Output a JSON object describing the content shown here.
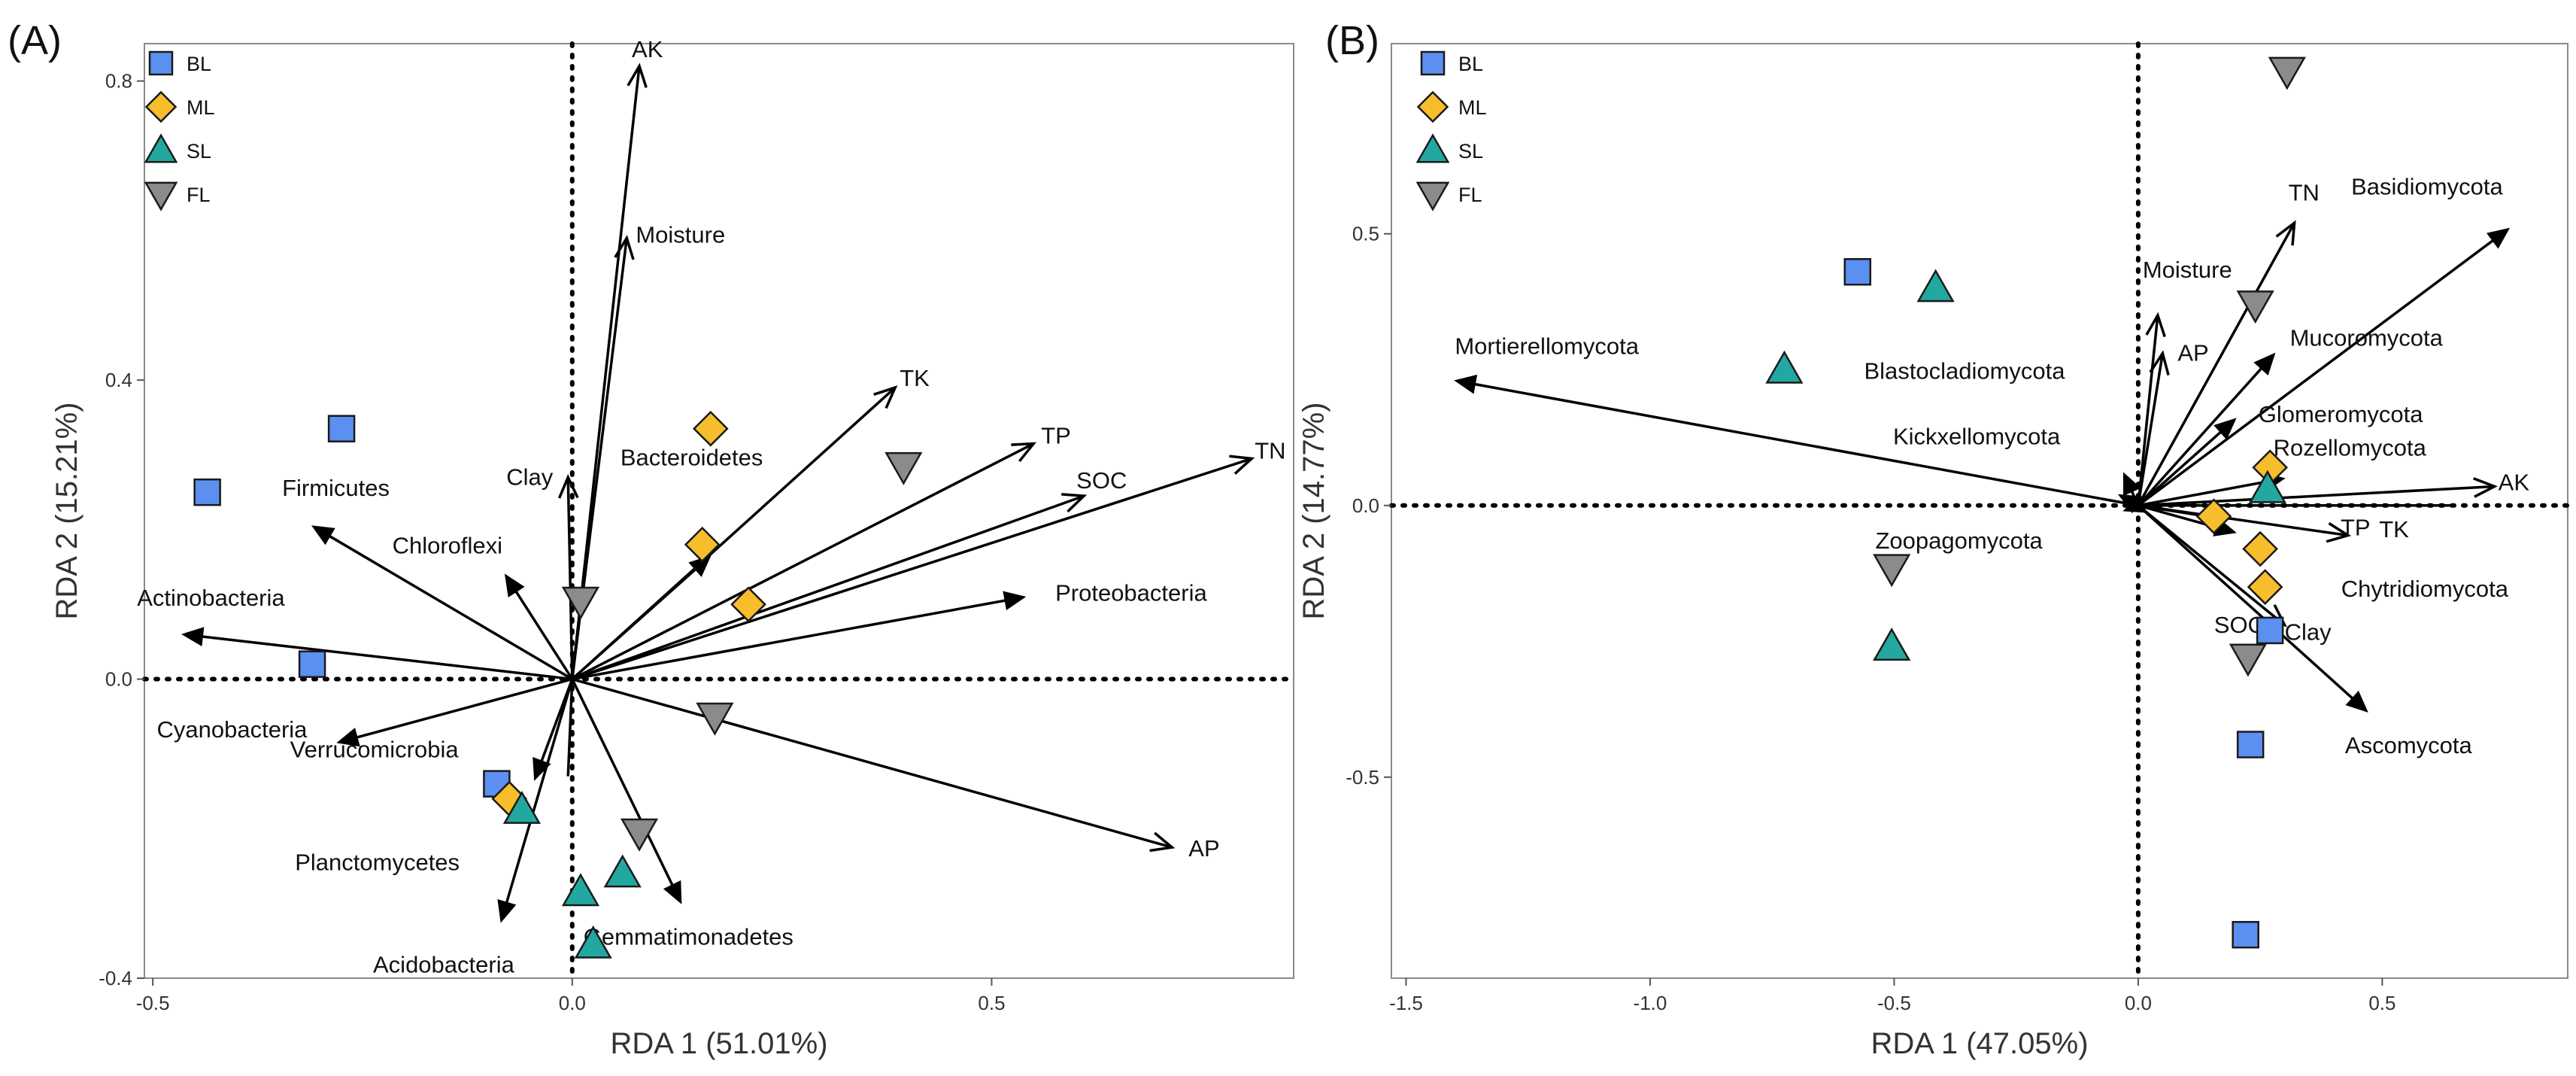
{
  "colors": {
    "BL": "#5b8ff0",
    "ML": "#f6bd2d",
    "SL": "#22a8a0",
    "FL": "#8b8b8b"
  },
  "legend": [
    {
      "key": "BL",
      "label": "BL",
      "shape": "square"
    },
    {
      "key": "ML",
      "label": "ML",
      "shape": "diamond"
    },
    {
      "key": "SL",
      "label": "SL",
      "shape": "triangle-up"
    },
    {
      "key": "FL",
      "label": "FL",
      "shape": "triangle-down"
    }
  ],
  "chart_data": [
    {
      "type": "scatter",
      "panel_label": "(A)",
      "xlabel": "RDA 1 (51.01%)",
      "ylabel": "RDA 2 (15.21%)",
      "xlim": [
        -0.51,
        0.86
      ],
      "ylim": [
        -0.4,
        0.85
      ],
      "xticks": [
        -0.5,
        0.0,
        0.5
      ],
      "yticks": [
        -0.4,
        0.0,
        0.4,
        0.8
      ],
      "xtick_labels": [
        "-0.5",
        "0.0",
        "0.5"
      ],
      "ytick_labels": [
        "-0.4",
        "0.0",
        "0.4",
        "0.8"
      ],
      "legend_position": "top-left",
      "points": [
        {
          "group": "BL",
          "x": -0.275,
          "y": 0.335
        },
        {
          "group": "BL",
          "x": -0.435,
          "y": 0.25
        },
        {
          "group": "BL",
          "x": -0.31,
          "y": 0.02
        },
        {
          "group": "BL",
          "x": -0.09,
          "y": -0.14
        },
        {
          "group": "ML",
          "x": 0.165,
          "y": 0.335
        },
        {
          "group": "ML",
          "x": 0.155,
          "y": 0.18
        },
        {
          "group": "ML",
          "x": 0.21,
          "y": 0.1
        },
        {
          "group": "ML",
          "x": -0.075,
          "y": -0.16
        },
        {
          "group": "SL",
          "x": -0.06,
          "y": -0.175
        },
        {
          "group": "SL",
          "x": 0.01,
          "y": -0.285
        },
        {
          "group": "SL",
          "x": 0.06,
          "y": -0.26
        },
        {
          "group": "SL",
          "x": 0.025,
          "y": -0.355
        },
        {
          "group": "FL",
          "x": 0.395,
          "y": 0.285
        },
        {
          "group": "FL",
          "x": 0.01,
          "y": 0.105
        },
        {
          "group": "FL",
          "x": 0.17,
          "y": -0.05
        },
        {
          "group": "FL",
          "x": 0.08,
          "y": -0.205
        }
      ],
      "arrows": [
        {
          "label": "AK",
          "x": 0.08,
          "y": 0.82,
          "head": "open",
          "label_dx": -10,
          "label_dy": -12,
          "anchor": "start"
        },
        {
          "label": "Moisture",
          "x": 0.065,
          "y": 0.59,
          "head": "open",
          "label_dx": 12,
          "label_dy": 6,
          "anchor": "start"
        },
        {
          "label": "TK",
          "x": 0.385,
          "y": 0.39,
          "head": "open",
          "label_dx": 6,
          "label_dy": -2,
          "anchor": "start"
        },
        {
          "label": "TP",
          "x": 0.55,
          "y": 0.315,
          "head": "open",
          "label_dx": 10,
          "label_dy": 0,
          "anchor": "start"
        },
        {
          "label": "SOC",
          "x": 0.61,
          "y": 0.245,
          "head": "open",
          "label_dx": -10,
          "label_dy": -10,
          "anchor": "start"
        },
        {
          "label": "TN",
          "x": 0.81,
          "y": 0.295,
          "head": "open",
          "label_dx": 4,
          "label_dy": 0,
          "anchor": "start"
        },
        {
          "label": "AP",
          "x": 0.715,
          "y": -0.225,
          "head": "open",
          "label_dx": 22,
          "label_dy": 12,
          "anchor": "start"
        },
        {
          "label": "Clay",
          "x": -0.005,
          "y": 0.27,
          "head": "open",
          "label_dx": -20,
          "label_dy": 10,
          "anchor": "end"
        },
        {
          "label": "Bacteroidetes",
          "x": 0.165,
          "y": 0.165,
          "head": "filled",
          "label_dx": -120,
          "label_dy": -120,
          "anchor": "start"
        },
        {
          "label": "Firmicutes",
          "x": -0.31,
          "y": 0.205,
          "head": "filled",
          "label_dx": -40,
          "label_dy": -40,
          "anchor": "start"
        },
        {
          "label": "Chloroflexi",
          "x": -0.08,
          "y": 0.14,
          "head": "filled",
          "label_dx": -150,
          "label_dy": -28,
          "anchor": "start"
        },
        {
          "label": "Actinobacteria",
          "x": -0.465,
          "y": 0.06,
          "head": "filled",
          "label_dx": -60,
          "label_dy": -38,
          "anchor": "start"
        },
        {
          "label": "Proteobacteria",
          "x": 0.54,
          "y": 0.11,
          "head": "filled",
          "label_dx": 40,
          "label_dy": 5,
          "anchor": "start"
        },
        {
          "label": "Cyanobacteria",
          "x": -0.28,
          "y": -0.085,
          "head": "filled",
          "label_dx": -240,
          "label_dy": -7,
          "anchor": "start"
        },
        {
          "label": "Verrucomicrobia",
          "x": -0.045,
          "y": -0.135,
          "head": "filled",
          "label_dx": -325,
          "label_dy": -30,
          "anchor": "start"
        },
        {
          "label": "Planctomycetes",
          "x": -0.005,
          "y": -0.13,
          "head": "none",
          "label_dx": -363,
          "label_dy": 125,
          "anchor": "start"
        },
        {
          "label": "Acidobacteria",
          "x": -0.085,
          "y": -0.325,
          "head": "filled",
          "label_dx": -170,
          "label_dy": 67,
          "anchor": "start"
        },
        {
          "label": "Gemmatimonadetes",
          "x": 0.13,
          "y": -0.3,
          "head": "filled",
          "label_dx": -130,
          "label_dy": 55,
          "anchor": "start"
        }
      ]
    },
    {
      "type": "scatter",
      "panel_label": "(B)",
      "xlabel": "RDA 1 (47.05%)",
      "ylabel": "RDA 2 (14.77%)",
      "xlim": [
        -1.53,
        0.88
      ],
      "ylim": [
        -0.87,
        0.85
      ],
      "xticks": [
        -1.5,
        -1.0,
        -0.5,
        0.0,
        0.5
      ],
      "yticks": [
        -0.5,
        0.0,
        0.5
      ],
      "xtick_labels": [
        "-1.5",
        "-1.0",
        "-0.5",
        "0.0",
        "0.5"
      ],
      "ytick_labels": [
        "-0.5",
        "0.0",
        "0.5"
      ],
      "legend_position": "top-left",
      "points": [
        {
          "group": "BL",
          "x": -0.575,
          "y": 0.43
        },
        {
          "group": "BL",
          "x": 0.27,
          "y": -0.23
        },
        {
          "group": "BL",
          "x": 0.23,
          "y": -0.44
        },
        {
          "group": "BL",
          "x": 0.22,
          "y": -0.79
        },
        {
          "group": "ML",
          "x": 0.27,
          "y": 0.07
        },
        {
          "group": "ML",
          "x": 0.155,
          "y": -0.02
        },
        {
          "group": "ML",
          "x": 0.25,
          "y": -0.08
        },
        {
          "group": "ML",
          "x": 0.26,
          "y": -0.15
        },
        {
          "group": "SL",
          "x": -0.415,
          "y": 0.4
        },
        {
          "group": "SL",
          "x": -0.725,
          "y": 0.25
        },
        {
          "group": "SL",
          "x": 0.265,
          "y": 0.03
        },
        {
          "group": "SL",
          "x": -0.505,
          "y": -0.26
        },
        {
          "group": "FL",
          "x": 0.305,
          "y": 0.8
        },
        {
          "group": "FL",
          "x": 0.24,
          "y": 0.37
        },
        {
          "group": "FL",
          "x": -0.505,
          "y": -0.115
        },
        {
          "group": "FL",
          "x": 0.225,
          "y": -0.28
        }
      ],
      "arrows": [
        {
          "label": "TN",
          "x": 0.32,
          "y": 0.52,
          "head": "open",
          "label_dx": -8,
          "label_dy": -30,
          "anchor": "start"
        },
        {
          "label": "Moisture",
          "x": 0.04,
          "y": 0.35,
          "head": "open",
          "label_dx": -20,
          "label_dy": -50,
          "anchor": "start"
        },
        {
          "label": "AP",
          "x": 0.05,
          "y": 0.28,
          "head": "open",
          "label_dx": 20,
          "label_dy": 10,
          "anchor": "start"
        },
        {
          "label": "AK",
          "x": 0.73,
          "y": 0.035,
          "head": "open",
          "label_dx": 5,
          "label_dy": 5,
          "anchor": "start"
        },
        {
          "label": "TP",
          "x": 0.43,
          "y": -0.055,
          "head": "open",
          "label_dx": -10,
          "label_dy": 0,
          "anchor": "start"
        },
        {
          "label": "TK",
          "x": 0.64,
          "y": 0.0,
          "head": "none",
          "label_dx": -95,
          "label_dy": 42,
          "anchor": "start"
        },
        {
          "label": "SOC",
          "x": 0.14,
          "y": -0.02,
          "head": "none",
          "label_dx": 10,
          "label_dy": 155,
          "anchor": "start"
        },
        {
          "label": "Clay",
          "x": 0.3,
          "y": -0.22,
          "head": "open",
          "label_dx": 0,
          "label_dy": 20,
          "anchor": "start"
        },
        {
          "label": "Basidiomycota",
          "x": 0.76,
          "y": 0.51,
          "head": "filled",
          "label_dx": -210,
          "label_dy": -45,
          "anchor": "start"
        },
        {
          "label": "Mucoromycota",
          "x": 0.28,
          "y": 0.28,
          "head": "filled",
          "label_dx": 20,
          "label_dy": -10,
          "anchor": "start"
        },
        {
          "label": "Glomeromycota",
          "x": 0.2,
          "y": 0.16,
          "head": "filled",
          "label_dx": 30,
          "label_dy": 5,
          "anchor": "start"
        },
        {
          "label": "Rozellomycota",
          "x": 0.3,
          "y": 0.05,
          "head": "filled",
          "label_dx": -15,
          "label_dy": -30,
          "anchor": "start"
        },
        {
          "label": "Chytridiomycota",
          "x": 0.2,
          "y": -0.05,
          "head": "filled",
          "label_dx": 140,
          "label_dy": 85,
          "anchor": "start"
        },
        {
          "label": "Ascomycota",
          "x": 0.47,
          "y": -0.38,
          "head": "filled",
          "label_dx": -30,
          "label_dy": 55,
          "anchor": "start"
        },
        {
          "label": "Mortierellomycota",
          "x": -1.4,
          "y": 0.23,
          "head": "filled",
          "label_dx": 0,
          "label_dy": -35,
          "anchor": "start"
        },
        {
          "label": "Blastocladiomycota",
          "x": -0.03,
          "y": 0.06,
          "head": "filled",
          "label_dx": -345,
          "label_dy": -125,
          "anchor": "start"
        },
        {
          "label": "Kickxellomycota",
          "x": -0.04,
          "y": 0.02,
          "head": "filled",
          "label_dx": -300,
          "label_dy": -67,
          "anchor": "start"
        },
        {
          "label": "Zoopagomycota",
          "x": -0.03,
          "y": -0.01,
          "head": "filled",
          "label_dx": -330,
          "label_dy": 50,
          "anchor": "start"
        }
      ]
    }
  ]
}
